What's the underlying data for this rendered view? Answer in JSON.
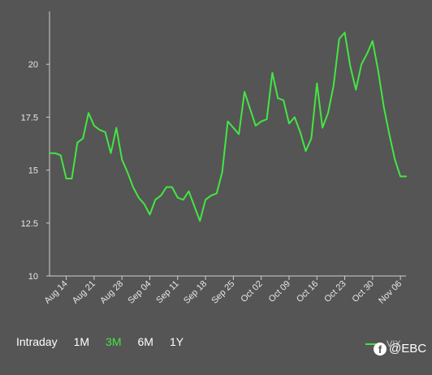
{
  "colors": {
    "background": "#555555",
    "line": "#43e643",
    "axis": "#cfcfcf",
    "tick_text": "#e6e6e6",
    "active_tab": "#43e643"
  },
  "range_tabs": [
    {
      "label": "Intraday",
      "active": false
    },
    {
      "label": "1M",
      "active": false
    },
    {
      "label": "3M",
      "active": true
    },
    {
      "label": "6M",
      "active": false
    },
    {
      "label": "1Y",
      "active": false
    }
  ],
  "watermark": {
    "icon": "facebook-icon",
    "text": "@EBC"
  },
  "chart_data": {
    "type": "line",
    "title": "",
    "xlabel": "",
    "ylabel": "",
    "ylim": [
      10,
      22.5
    ],
    "yticks": [
      10,
      12.5,
      15,
      17.5,
      20
    ],
    "ytick_labels": [
      "10",
      "12.5",
      "15",
      "17.5",
      "20"
    ],
    "xtick_labels": [
      "Aug 14",
      "Aug 21",
      "Aug 28",
      "Sep 04",
      "Sep 11",
      "Sep 18",
      "Sep 25",
      "Oct 02",
      "Oct 09",
      "Oct 16",
      "Oct 23",
      "Oct 30",
      "Nov 06"
    ],
    "xtick_index": [
      3,
      8,
      13,
      18,
      23,
      28,
      33,
      38,
      43,
      48,
      53,
      58,
      63
    ],
    "grid": false,
    "legend": "bottom-right",
    "series": [
      {
        "name": "VIX",
        "values": [
          15.8,
          15.8,
          15.7,
          14.6,
          14.6,
          16.3,
          16.5,
          17.7,
          17.1,
          16.9,
          16.8,
          15.8,
          17.0,
          15.5,
          14.9,
          14.2,
          13.7,
          13.4,
          12.9,
          13.6,
          13.8,
          14.2,
          14.2,
          13.7,
          13.6,
          14.0,
          13.3,
          12.6,
          13.6,
          13.8,
          13.9,
          14.9,
          17.3,
          17.0,
          16.7,
          18.7,
          17.9,
          17.1,
          17.3,
          17.4,
          19.6,
          18.4,
          18.3,
          17.2,
          17.5,
          16.8,
          15.9,
          16.5,
          19.1,
          17.0,
          17.7,
          19.0,
          21.2,
          21.5,
          19.9,
          18.8,
          20.0,
          20.5,
          21.1,
          19.7,
          18.0,
          16.7,
          15.5,
          14.7,
          14.7
        ]
      }
    ]
  }
}
